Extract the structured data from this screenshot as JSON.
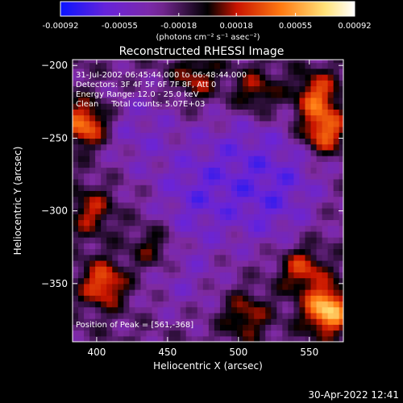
{
  "chart_data": {
    "type": "heatmap",
    "title": "Reconstructed RHESSI Image",
    "xlabel": "Heliocentric X (arcsec)",
    "ylabel": "Heliocentric Y (arcsec)",
    "xlim": [
      383,
      574
    ],
    "ylim": [
      -390,
      -196
    ],
    "x_ticks": [
      400,
      450,
      500,
      550
    ],
    "y_ticks": [
      -200,
      -250,
      -300,
      -350
    ],
    "colorbar": {
      "ticks": [
        "-0.00092",
        "-0.00055",
        "-0.00018",
        "0.00018",
        "0.00055",
        "0.00092"
      ],
      "vmin": -0.00092,
      "vmax": 0.00092,
      "units_label": "(photons cm⁻² s⁻¹ asec⁻²)",
      "colors": [
        "#0a14ff",
        "#6a24d8",
        "#7f2aa0",
        "#000000",
        "#c91400",
        "#ff7a12",
        "#ffe37a",
        "#ffffff"
      ]
    },
    "annotations": [
      "31-Jul-2002 06:45:44.000 to 06:48:44.000",
      "Detectors: 3F 4F 5F 6F 7F 8F, Att 0",
      "Energy Range: 12.0 - 25.0 keV",
      "Clean     Total counts: 5.07E+03"
    ],
    "peak_label": "Position of Peak = [561,-368]",
    "peak": [
      561,
      -368
    ],
    "bright_regions": [
      {
        "x": 563,
        "y": -368,
        "peak": 0.00092
      },
      {
        "x": 392,
        "y": -240,
        "peak": 0.0007
      },
      {
        "x": 560,
        "y": -245,
        "peak": 0.0007
      },
      {
        "x": 555,
        "y": -220,
        "peak": 0.00055
      },
      {
        "x": 470,
        "y": -208,
        "peak": 0.0004
      },
      {
        "x": 405,
        "y": -350,
        "peak": 0.0006
      },
      {
        "x": 512,
        "y": -218,
        "peak": 0.0004
      },
      {
        "x": 545,
        "y": -340,
        "peak": 0.0005
      },
      {
        "x": 396,
        "y": -300,
        "peak": 0.0004
      },
      {
        "x": 505,
        "y": -372,
        "peak": 0.0004
      },
      {
        "x": 440,
        "y": -325,
        "peak": 0.00035
      }
    ],
    "dim_regions": [
      {
        "x": 470,
        "y": -290,
        "trough": -0.00092
      },
      {
        "x": 430,
        "y": -245,
        "trough": -0.0007
      },
      {
        "x": 520,
        "y": -300,
        "trough": -0.0008
      },
      {
        "x": 500,
        "y": -255,
        "trough": -0.0007
      },
      {
        "x": 460,
        "y": -345,
        "trough": -0.0006
      },
      {
        "x": 540,
        "y": -270,
        "trough": -0.0006
      }
    ]
  },
  "footer_timestamp": "30-Apr-2022 12:41"
}
